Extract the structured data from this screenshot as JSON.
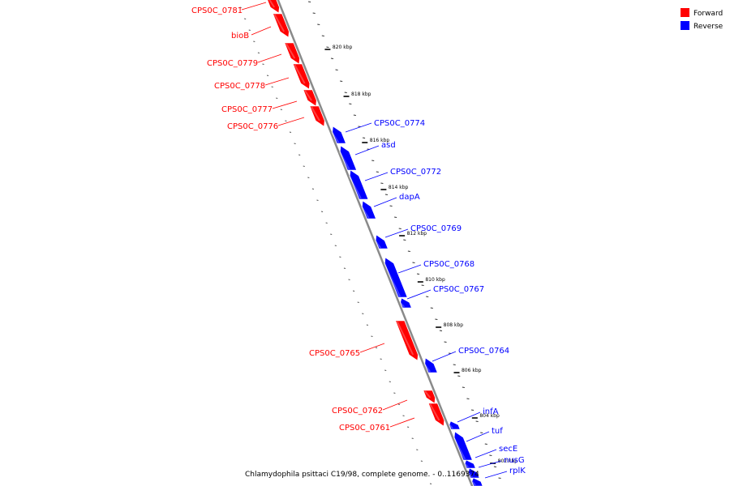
{
  "legend": {
    "forward": {
      "label": "Forward",
      "color": "#ff0000"
    },
    "reverse": {
      "label": "Reverse",
      "color": "#0000ff"
    }
  },
  "caption": "Chlamydophila psittaci C19/98, complete genome. - 0..1169374",
  "scale_labels": [
    "820 kbp",
    "818 kbp",
    "816 kbp",
    "814 kbp",
    "812 kbp",
    "810 kbp",
    "808 kbp",
    "806 kbp",
    "804 kbp",
    "802 kbp"
  ],
  "genes_forward": [
    "CPS0C_0781",
    "bioB",
    "CPS0C_0779",
    "CPS0C_0778",
    "CPS0C_0777",
    "CPS0C_0776",
    "CPS0C_0765",
    "CPS0C_0762",
    "CPS0C_0761"
  ],
  "genes_reverse": [
    "CPS0C_0774",
    "asd",
    "CPS0C_0772",
    "dapA",
    "CPS0C_0769",
    "CPS0C_0768",
    "CPS0C_0767",
    "CPS0C_0764",
    "infA",
    "tuf",
    "secE",
    "nusG",
    "rplK"
  ]
}
